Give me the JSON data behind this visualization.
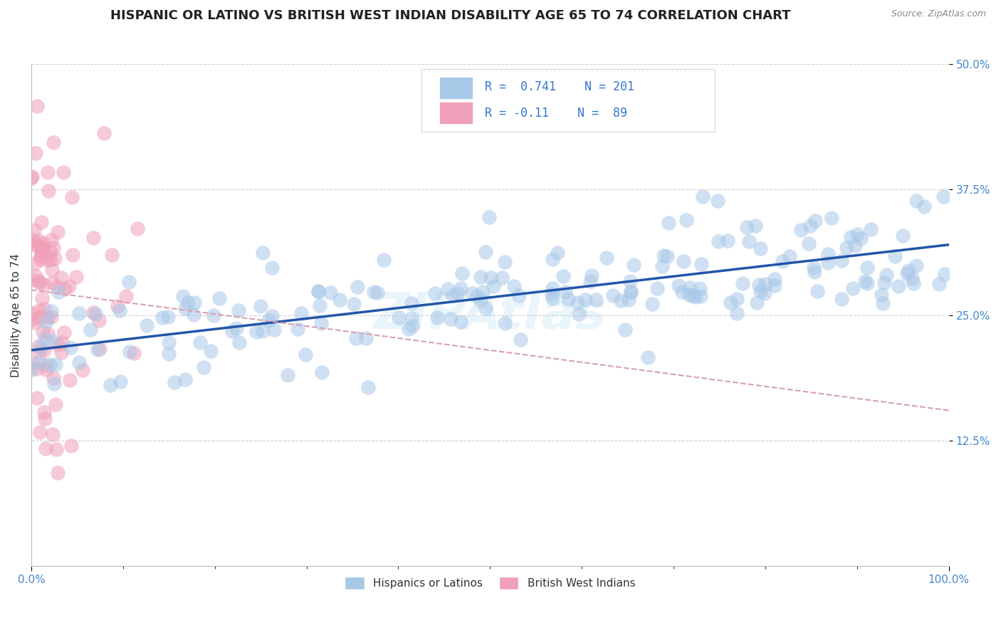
{
  "title": "HISPANIC OR LATINO VS BRITISH WEST INDIAN DISABILITY AGE 65 TO 74 CORRELATION CHART",
  "source_text": "Source: ZipAtlas.com",
  "xlabel": "",
  "ylabel": "Disability Age 65 to 74",
  "xlim": [
    0,
    1.0
  ],
  "ylim": [
    0,
    0.5
  ],
  "yticks": [
    0.125,
    0.25,
    0.375,
    0.5
  ],
  "ytick_labels": [
    "12.5%",
    "25.0%",
    "37.5%",
    "50.0%"
  ],
  "blue_R": 0.741,
  "blue_N": 201,
  "pink_R": -0.11,
  "pink_N": 89,
  "blue_color": "#A8C8E8",
  "pink_color": "#F0A0B8",
  "blue_edge_color": "#88AACC",
  "pink_edge_color": "#D08098",
  "blue_line_color": "#2255AA",
  "pink_line_color": "#D8A0B0",
  "legend_label_blue": "Hispanics or Latinos",
  "legend_label_pink": "British West Indians",
  "watermark": "ZIPAtlas",
  "background_color": "#FFFFFF",
  "grid_color": "#CCCCCC",
  "title_fontsize": 13,
  "axis_label_fontsize": 11,
  "tick_fontsize": 11,
  "legend_fontsize": 11,
  "blue_line_intercept": 0.215,
  "blue_line_slope": 0.105,
  "pink_line_intercept": 0.275,
  "pink_line_slope": -0.12
}
